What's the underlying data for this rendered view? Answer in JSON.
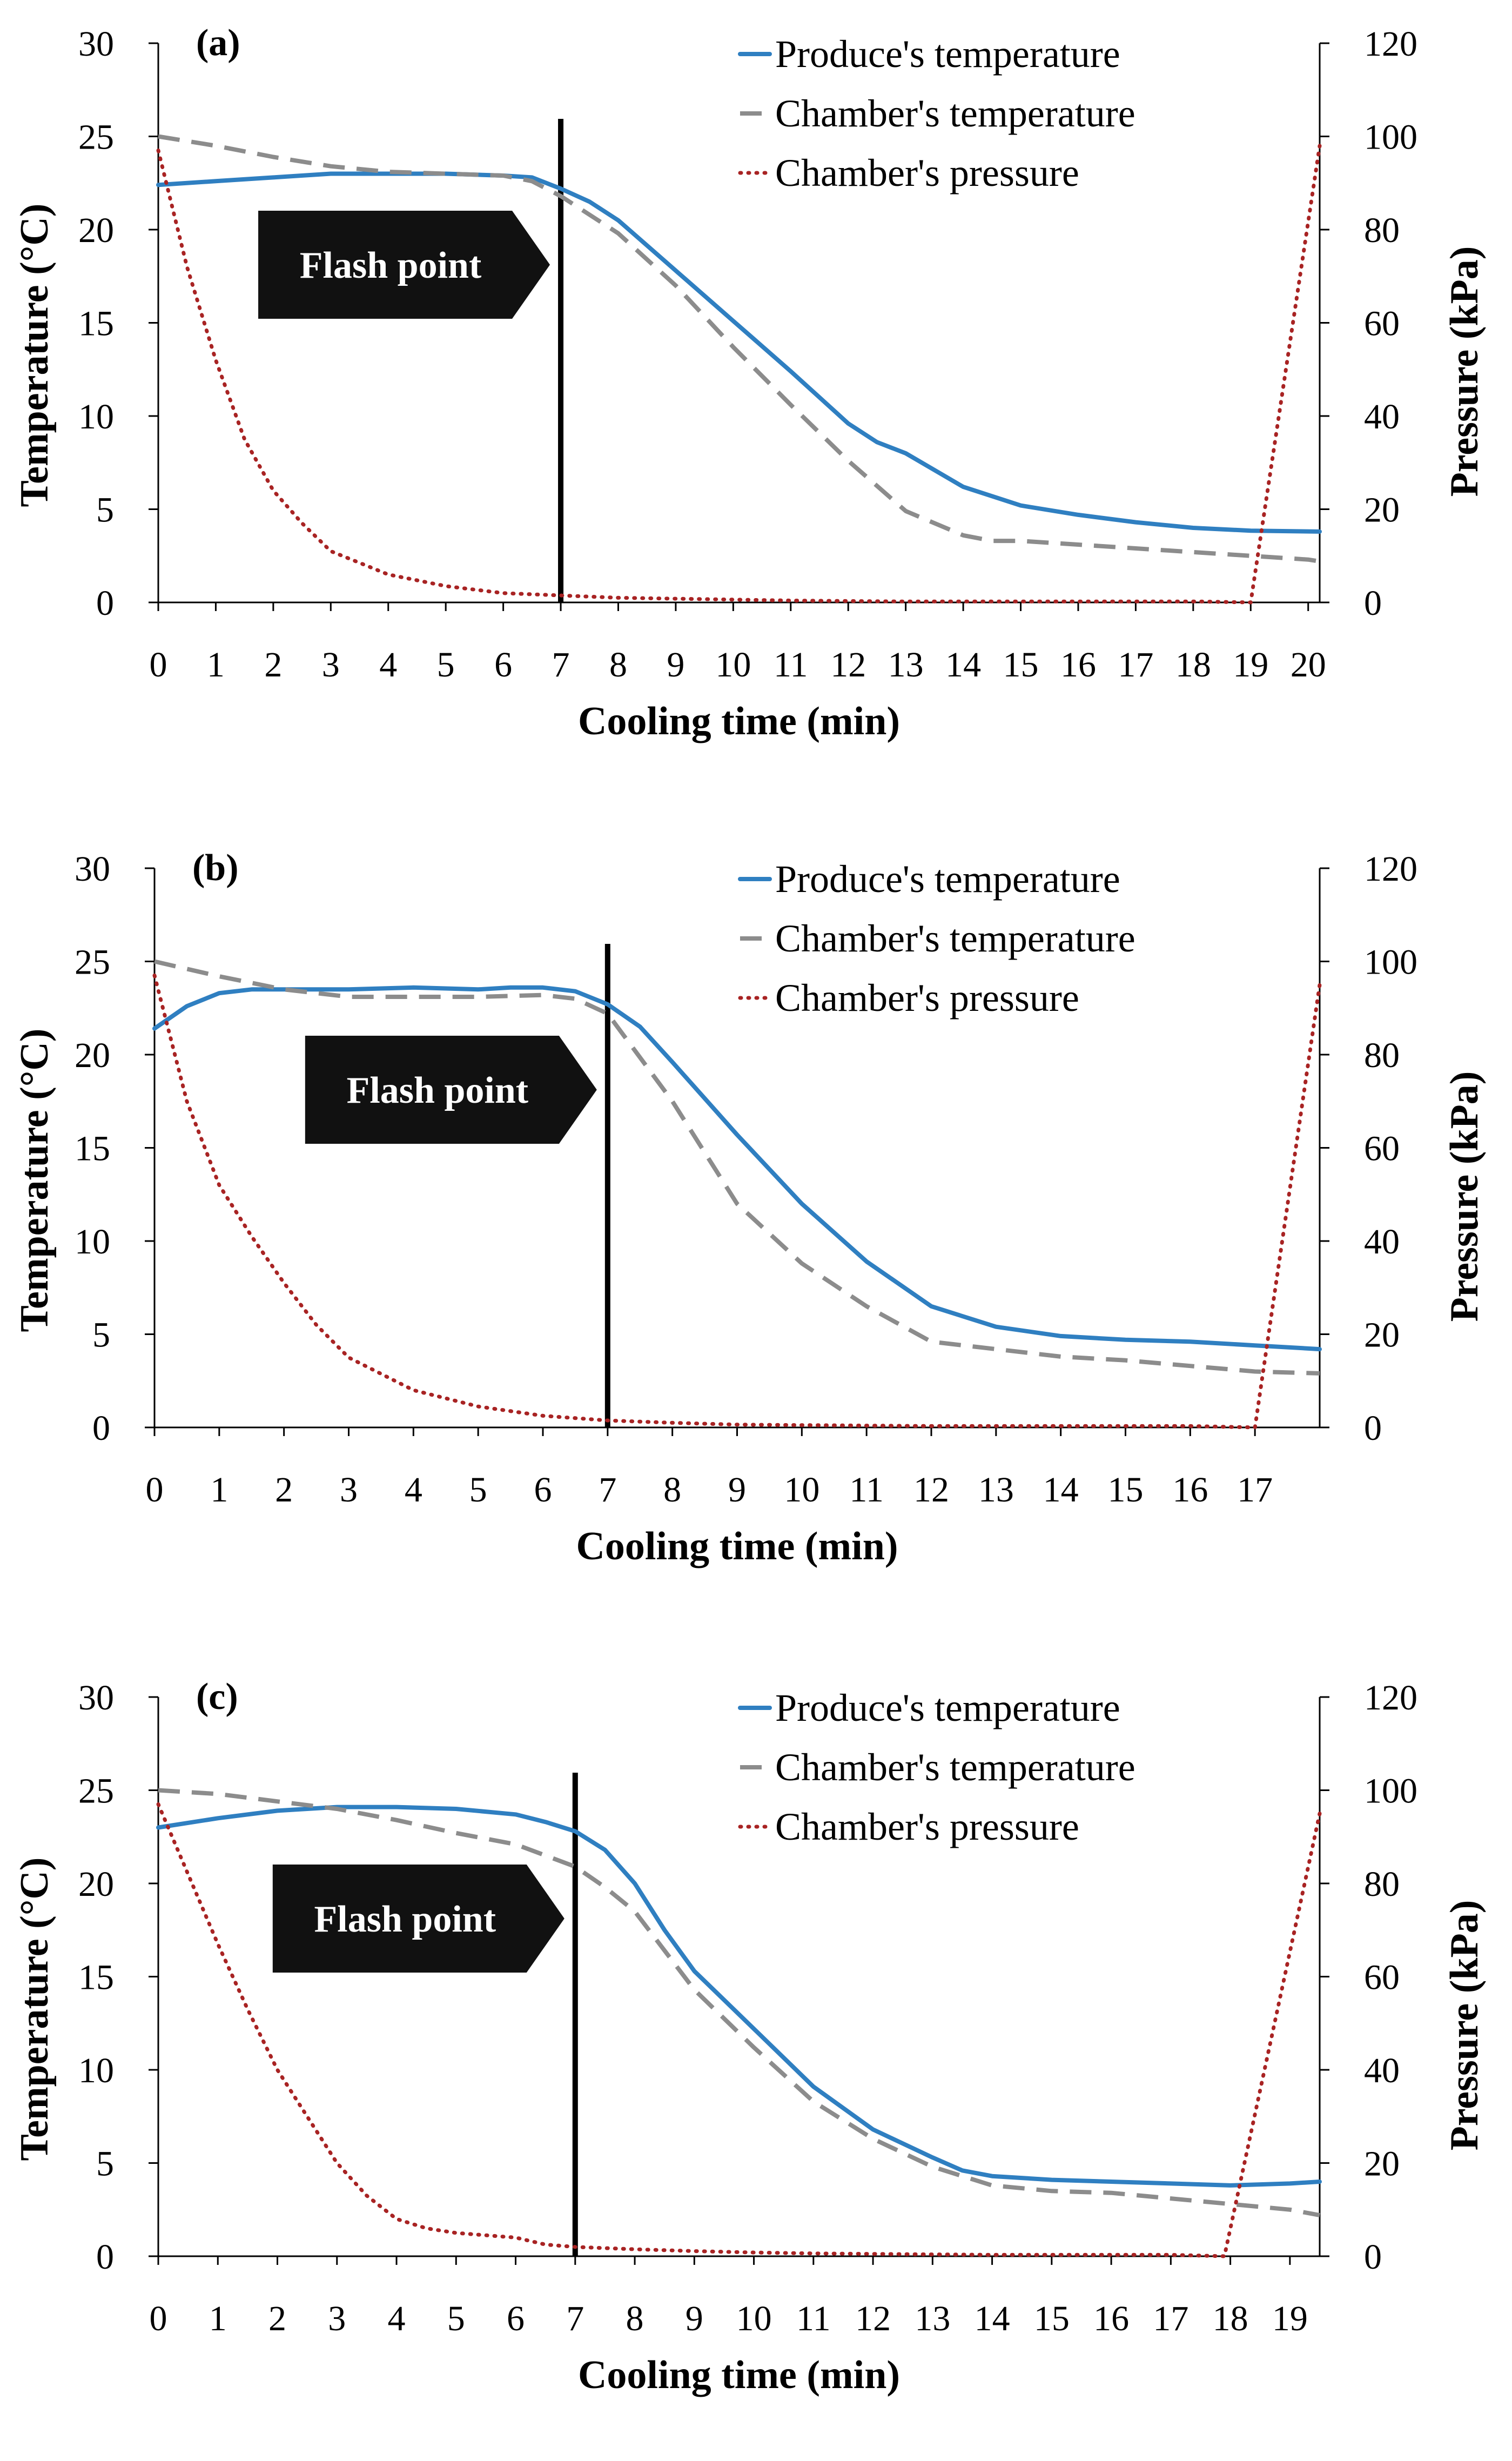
{
  "colors": {
    "produce": "#2f7fc1",
    "chamber_temp": "#8c8c8c",
    "pressure": "#a82323",
    "flash_box": "#111111",
    "flash_text": "#ffffff",
    "axis": "#000000"
  },
  "flash_label": "Flash point",
  "chart_data": [
    {
      "type": "line",
      "panel_label": "(a)",
      "xlabel": "Cooling time (min)",
      "ylabel": "Temperature (°C)",
      "y2label": "Pressure (kPa)",
      "xlim": [
        0,
        20.2
      ],
      "ylim": [
        0,
        30
      ],
      "y2lim": [
        0,
        120
      ],
      "xticks": [
        0,
        1,
        2,
        3,
        4,
        5,
        6,
        7,
        8,
        9,
        10,
        11,
        12,
        13,
        14,
        15,
        16,
        17,
        18,
        19,
        20
      ],
      "yticks": [
        0,
        5,
        10,
        15,
        20,
        25,
        30
      ],
      "y2ticks": [
        0,
        20,
        40,
        60,
        80,
        100,
        120
      ],
      "flash_x": 7,
      "legend": [
        "Produce's temperature",
        "Chamber's temperature",
        "Chamber's pressure"
      ],
      "series": [
        {
          "name": "Produce's temperature",
          "axis": "left",
          "style": "solid",
          "x": [
            0,
            1,
            2,
            3,
            4,
            5,
            6,
            6.5,
            7,
            7.5,
            8,
            9,
            10,
            11,
            12,
            12.5,
            13,
            14,
            15,
            16,
            17,
            18,
            19,
            20.2
          ],
          "y": [
            22.4,
            22.6,
            22.8,
            23,
            23,
            23,
            22.9,
            22.8,
            22.2,
            21.5,
            20.5,
            17.8,
            15.1,
            12.4,
            9.6,
            8.6,
            8,
            6.2,
            5.2,
            4.7,
            4.3,
            4,
            3.85,
            3.8
          ]
        },
        {
          "name": "Chamber's temperature",
          "axis": "left",
          "style": "dashed",
          "x": [
            0,
            1,
            2,
            3,
            4,
            5,
            6,
            6.5,
            7,
            8,
            9,
            10,
            11,
            12,
            13,
            14,
            14.5,
            15,
            16,
            17,
            18,
            19,
            20,
            20.2
          ],
          "y": [
            25,
            24.5,
            23.9,
            23.4,
            23.1,
            23,
            22.9,
            22.6,
            21.8,
            19.8,
            17,
            13.7,
            10.6,
            7.6,
            4.9,
            3.6,
            3.3,
            3.3,
            3.1,
            2.9,
            2.7,
            2.5,
            2.3,
            2.2
          ]
        },
        {
          "name": "Chamber's pressure",
          "axis": "right",
          "style": "dotted",
          "x": [
            0,
            0.5,
            1,
            1.5,
            2,
            2.5,
            3,
            4,
            5,
            6,
            7,
            8,
            9,
            10,
            11,
            12,
            13,
            14,
            15,
            16,
            17,
            18,
            18.1,
            19,
            20.2
          ],
          "y": [
            97,
            72,
            52,
            35,
            24,
            17,
            11,
            6,
            3.5,
            2,
            1.5,
            1,
            0.8,
            0.6,
            0.4,
            0.3,
            0.2,
            0.2,
            0.2,
            0.2,
            0.2,
            0.2,
            0.2,
            0,
            98
          ]
        }
      ]
    },
    {
      "type": "line",
      "panel_label": "(b)",
      "xlabel": "Cooling time (min)",
      "ylabel": "Temperature (°C)",
      "y2label": "Pressure (kPa)",
      "xlim": [
        0,
        18
      ],
      "ylim": [
        0,
        30
      ],
      "y2lim": [
        0,
        120
      ],
      "xticks": [
        0,
        1,
        2,
        3,
        4,
        5,
        6,
        7,
        8,
        9,
        10,
        11,
        12,
        13,
        14,
        15,
        16,
        17
      ],
      "yticks": [
        0,
        5,
        10,
        15,
        20,
        25,
        30
      ],
      "y2ticks": [
        0,
        20,
        40,
        60,
        80,
        100,
        120
      ],
      "flash_x": 7,
      "legend": [
        "Produce's temperature",
        "Chamber's temperature",
        "Chamber's pressure"
      ],
      "series": [
        {
          "name": "Produce's temperature",
          "axis": "left",
          "style": "solid",
          "x": [
            0,
            0.5,
            1,
            1.5,
            2,
            3,
            4,
            5,
            5.5,
            6,
            6.5,
            7,
            7.5,
            8,
            9,
            10,
            11,
            12,
            13,
            14,
            15,
            16,
            17,
            18
          ],
          "y": [
            21.4,
            22.6,
            23.3,
            23.5,
            23.5,
            23.5,
            23.6,
            23.5,
            23.6,
            23.6,
            23.4,
            22.7,
            21.5,
            19.6,
            15.7,
            12,
            8.9,
            6.5,
            5.4,
            4.9,
            4.7,
            4.6,
            4.4,
            4.2
          ]
        },
        {
          "name": "Chamber's temperature",
          "axis": "left",
          "style": "dashed",
          "x": [
            0,
            1,
            2,
            3,
            4,
            5,
            6,
            6.5,
            7,
            8,
            9,
            10,
            11,
            12,
            13,
            14,
            15,
            16,
            17,
            18
          ],
          "y": [
            25,
            24.2,
            23.5,
            23.1,
            23.1,
            23.1,
            23.2,
            23,
            22.2,
            17.5,
            12,
            8.8,
            6.5,
            4.6,
            4.2,
            3.8,
            3.6,
            3.3,
            3,
            2.9
          ]
        },
        {
          "name": "Chamber's pressure",
          "axis": "right",
          "style": "dotted",
          "x": [
            0,
            0.5,
            1,
            1.5,
            2,
            2.5,
            3,
            4,
            5,
            6,
            7,
            8,
            9,
            10,
            11,
            12,
            13,
            14,
            15,
            16,
            17,
            18
          ],
          "y": [
            97,
            70,
            52,
            41,
            31,
            22,
            15,
            8,
            4.5,
            2.5,
            1.5,
            1,
            0.6,
            0.5,
            0.4,
            0.3,
            0.3,
            0.3,
            0.3,
            0.3,
            0,
            95
          ]
        }
      ]
    },
    {
      "type": "line",
      "panel_label": "(c)",
      "xlabel": "Cooling time (min)",
      "ylabel": "Temperature (°C)",
      "y2label": "Pressure (kPa)",
      "xlim": [
        0,
        19.5
      ],
      "ylim": [
        0,
        30
      ],
      "y2lim": [
        0,
        120
      ],
      "xticks": [
        0,
        1,
        2,
        3,
        4,
        5,
        6,
        7,
        8,
        9,
        10,
        11,
        12,
        13,
        14,
        15,
        16,
        17,
        18,
        19
      ],
      "yticks": [
        0,
        5,
        10,
        15,
        20,
        25,
        30
      ],
      "y2ticks": [
        0,
        20,
        40,
        60,
        80,
        100,
        120
      ],
      "flash_x": 7,
      "legend": [
        "Produce's temperature",
        "Chamber's temperature",
        "Chamber's pressure"
      ],
      "series": [
        {
          "name": "Produce's temperature",
          "axis": "left",
          "style": "solid",
          "x": [
            0,
            1,
            2,
            3,
            4,
            5,
            6,
            6.5,
            7,
            7.5,
            8,
            8.5,
            9,
            10,
            11,
            12,
            13,
            13.5,
            14,
            15,
            16,
            17,
            18,
            19,
            19.5
          ],
          "y": [
            23,
            23.5,
            23.9,
            24.1,
            24.1,
            24,
            23.7,
            23.3,
            22.8,
            21.8,
            20,
            17.5,
            15.3,
            12.2,
            9.1,
            6.8,
            5.3,
            4.6,
            4.3,
            4.1,
            4,
            3.9,
            3.8,
            3.9,
            4
          ]
        },
        {
          "name": "Chamber's temperature",
          "axis": "left",
          "style": "dashed",
          "x": [
            0,
            1,
            2,
            3,
            4,
            5,
            6,
            7,
            7.5,
            8,
            9,
            10,
            11,
            12,
            13,
            14,
            15,
            16,
            17,
            18,
            19,
            19.5
          ],
          "y": [
            25,
            24.8,
            24.4,
            24,
            23.4,
            22.7,
            22.1,
            20.9,
            19.8,
            18.5,
            14.3,
            11.2,
            8.3,
            6.3,
            4.8,
            3.8,
            3.5,
            3.4,
            3.1,
            2.8,
            2.5,
            2.2
          ]
        },
        {
          "name": "Chamber's pressure",
          "axis": "right",
          "style": "dotted",
          "x": [
            0,
            0.5,
            1,
            1.5,
            2,
            2.5,
            3,
            3.5,
            4,
            4.5,
            5,
            5.5,
            6,
            6.5,
            7,
            8,
            9,
            10,
            11,
            12,
            13,
            14,
            15,
            16,
            17,
            17.9,
            19.5
          ],
          "y": [
            97,
            82,
            67,
            53,
            40,
            30,
            20,
            13,
            8,
            6,
            5,
            4.5,
            4,
            2.5,
            2,
            1.5,
            1.1,
            0.8,
            0.6,
            0.5,
            0.4,
            0.3,
            0.3,
            0.3,
            0.3,
            0,
            95
          ]
        }
      ]
    }
  ]
}
